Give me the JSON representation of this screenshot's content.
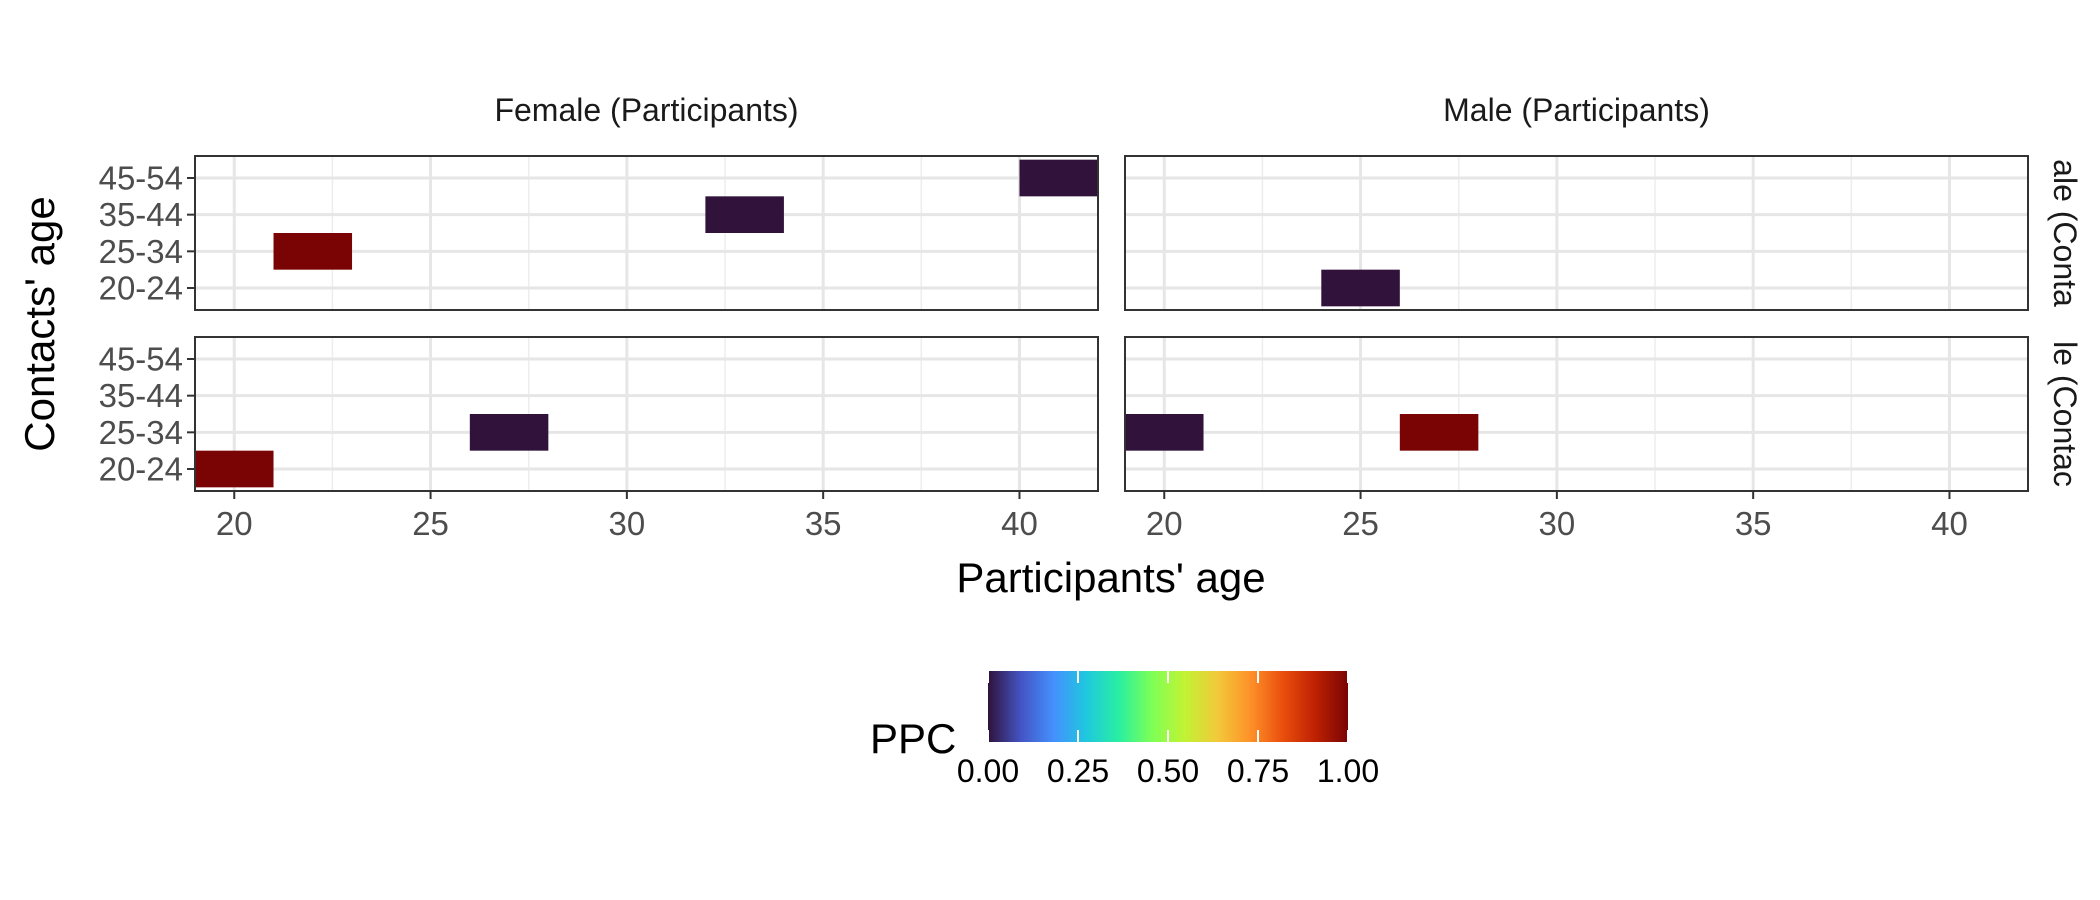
{
  "chart_data": {
    "type": "heatmap",
    "xlabel": "Participants' age",
    "ylabel": "Contacts' age",
    "xlim": [
      19,
      42
    ],
    "x_ticks": [
      20,
      25,
      30,
      35,
      40
    ],
    "x_minor_ticks": [
      22.5,
      27.5,
      32.5,
      37.5
    ],
    "y_categories": [
      "20-24",
      "25-34",
      "35-44",
      "45-54"
    ],
    "facet_cols": [
      "Female (Participants)",
      "Male (Participants)"
    ],
    "facet_rows": [
      "Female (Contacts)",
      "Male (Contacts)"
    ],
    "facet_row_labels_visible": [
      "ale (Conta",
      "le (Contac"
    ],
    "tile_width": 2,
    "panels": [
      {
        "row": 0,
        "col": 0,
        "tiles": [
          {
            "x": 22,
            "y": "25-34",
            "value": 1.0
          },
          {
            "x": 33,
            "y": "35-44",
            "value": 0.0
          },
          {
            "x": 41,
            "y": "45-54",
            "value": 0.0
          }
        ]
      },
      {
        "row": 0,
        "col": 1,
        "tiles": [
          {
            "x": 25,
            "y": "20-24",
            "value": 0.0
          }
        ]
      },
      {
        "row": 1,
        "col": 0,
        "tiles": [
          {
            "x": 20,
            "y": "20-24",
            "value": 1.0
          },
          {
            "x": 27,
            "y": "25-34",
            "value": 0.0
          }
        ]
      },
      {
        "row": 1,
        "col": 1,
        "tiles": [
          {
            "x": 20,
            "y": "25-34",
            "value": 0.0
          },
          {
            "x": 27,
            "y": "25-34",
            "value": 1.0
          }
        ]
      }
    ],
    "legend": {
      "title": "PPC",
      "position": "bottom",
      "range": [
        0,
        1
      ],
      "ticks": [
        "0.00",
        "0.25",
        "0.50",
        "0.75",
        "1.00"
      ],
      "tick_values": [
        0,
        0.25,
        0.5,
        0.75,
        1.0
      ],
      "colormap": "turbo",
      "colors": [
        "#30123b",
        "#4454c4",
        "#4490fe",
        "#1fc8de",
        "#29efa2",
        "#7dff56",
        "#c1f334",
        "#f1ca3a",
        "#fe922a",
        "#ea4f0d",
        "#be2102",
        "#7a0403"
      ]
    },
    "grid": true,
    "panel_background": "#ffffff"
  }
}
